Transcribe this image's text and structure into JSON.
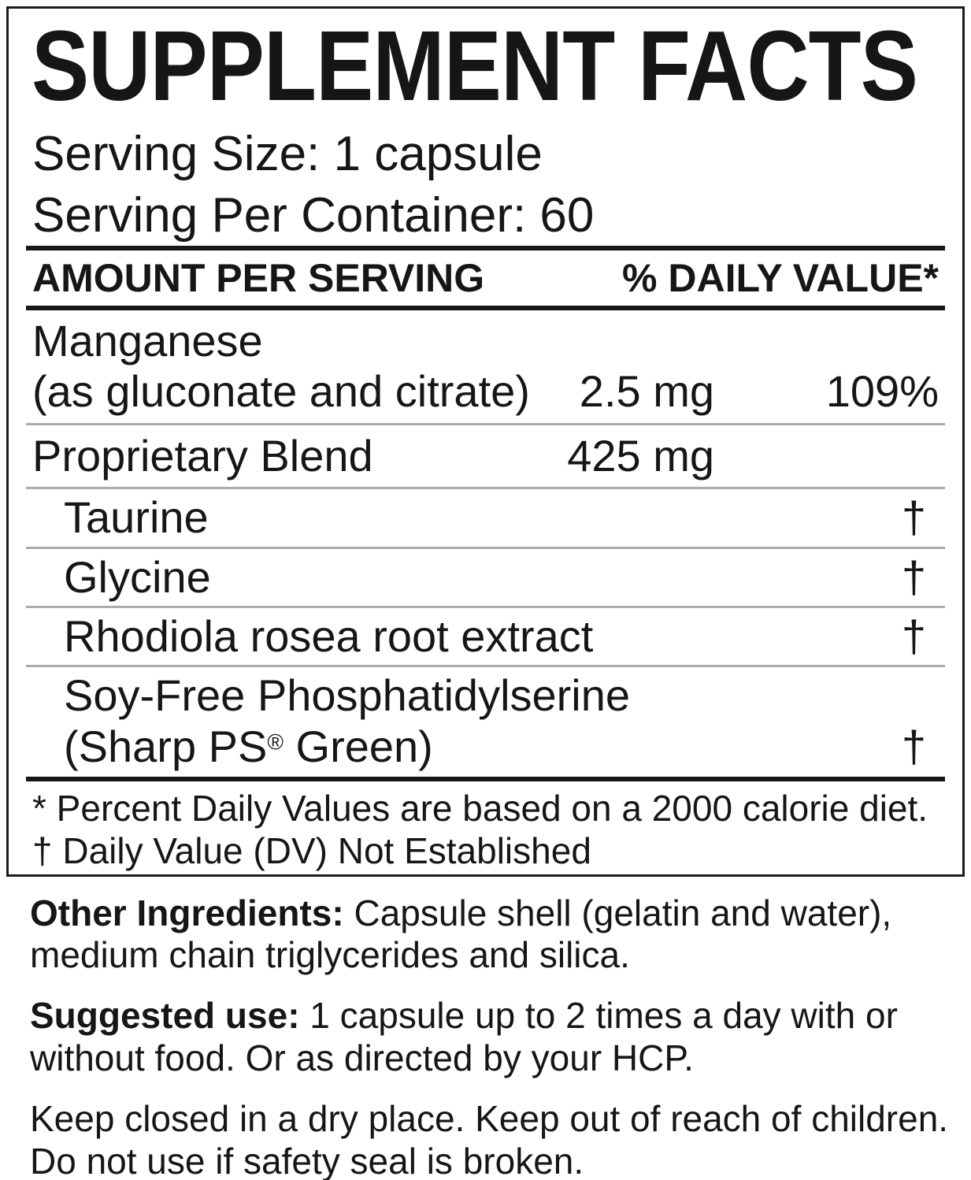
{
  "label": {
    "title": "SUPPLEMENT FACTS",
    "serving_size": "Serving Size: 1 capsule",
    "servings_per_container": "Serving Per Container: 60",
    "columns": {
      "amount_per_serving": "AMOUNT PER SERVING",
      "daily_value": "% DAILY VALUE*"
    },
    "rows": [
      {
        "name": "Manganese",
        "name2": "(as gluconate and citrate)",
        "amount": "2.5 mg",
        "daily_value": "109%"
      },
      {
        "name": "Proprietary Blend",
        "amount": "425 mg"
      },
      {
        "name": "Taurine",
        "daily_value": "†"
      },
      {
        "name": "Glycine",
        "daily_value": "†"
      },
      {
        "name": "Rhodiola rosea root extract",
        "daily_value": "†"
      },
      {
        "name": "Soy-Free Phosphatidylserine",
        "name2_pre": "(Sharp PS",
        "name2_reg": "®",
        "name2_post": " Green)",
        "daily_value": "†"
      }
    ],
    "footnotes": [
      "* Percent Daily Values are based on a 2000 calorie diet.",
      "† Daily Value (DV) Not Established"
    ]
  },
  "sections": [
    {
      "lead": "Other Ingredients:",
      "line1": " Capsule shell (gelatin and water),",
      "line2": "medium chain triglycerides and silica."
    },
    {
      "lead": "Suggested use:",
      "line1": " 1 capsule up to 2 times a day with or",
      "line2": "without food. Or as directed by your HCP."
    },
    {
      "lead": "",
      "line1": "Keep closed in a dry place. Keep out of reach of children.",
      "line2": "Do not use if safety seal is broken."
    }
  ],
  "colors": {
    "text": "#161616",
    "rule_thick": "#171717",
    "rule_thin": "#ababab",
    "border": "#1c1c1c"
  }
}
